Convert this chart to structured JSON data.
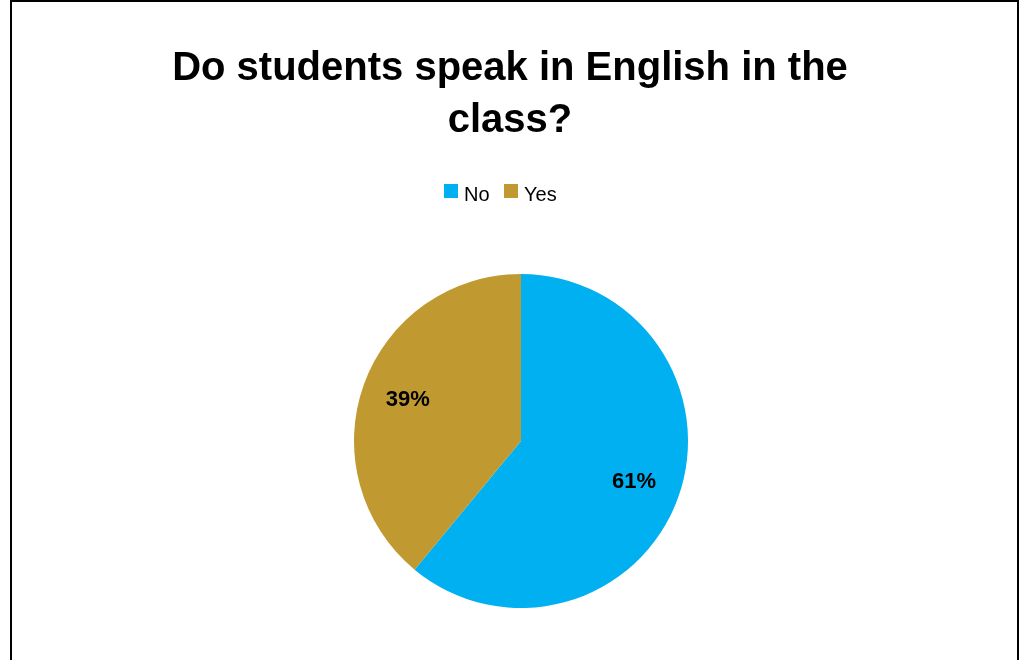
{
  "chart_data": {
    "type": "pie",
    "title": "Do students speak in English in the class?",
    "categories": [
      "No",
      "Yes"
    ],
    "values": [
      61,
      39
    ],
    "colors": [
      "#00b0f0",
      "#c09a30"
    ],
    "value_labels": [
      "61%",
      "39%"
    ],
    "legend": "top"
  }
}
